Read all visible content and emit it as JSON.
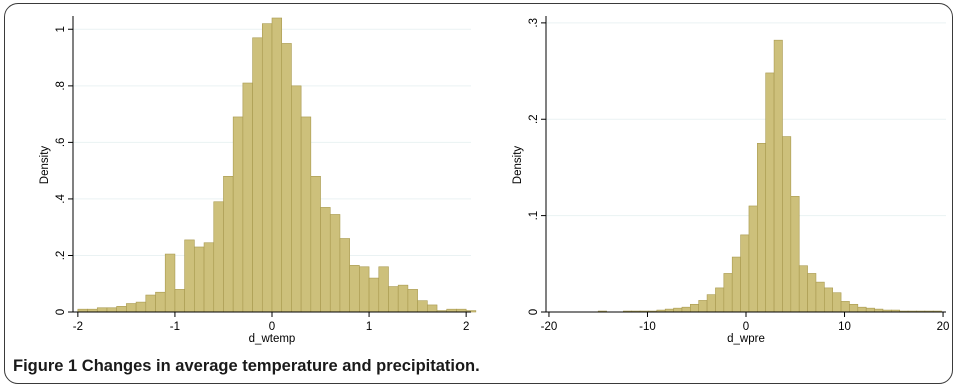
{
  "caption": {
    "label": "Figure 1",
    "text": "Changes in average temperature and precipitation."
  },
  "colors": {
    "bar_fill": "#cdc07b",
    "bar_stroke": "#a8994e",
    "plot_bg": "#ffffff",
    "grid": "#eaf2f3",
    "axis": "#000000"
  },
  "chart_data": [
    {
      "type": "bar",
      "subtype": "histogram",
      "xlabel": "d_wtemp",
      "ylabel": "Density",
      "xlim": [
        -2.05,
        2.05
      ],
      "ylim": [
        0,
        1.04
      ],
      "xticks": [
        -2,
        -1,
        0,
        1,
        2
      ],
      "xtick_labels": [
        "-2",
        "-1",
        "0",
        "1",
        "2"
      ],
      "yticks": [
        0,
        0.2,
        0.4,
        0.6,
        0.8,
        1
      ],
      "ytick_labels": [
        "0",
        ".2",
        ".4",
        ".6",
        ".8",
        "1"
      ],
      "grid": true,
      "bin_start": -2.0,
      "bin_width": 0.1,
      "values": [
        0.01,
        0.01,
        0.015,
        0.015,
        0.02,
        0.03,
        0.035,
        0.06,
        0.07,
        0.205,
        0.08,
        0.255,
        0.23,
        0.245,
        0.39,
        0.48,
        0.69,
        0.81,
        0.97,
        1.02,
        1.04,
        0.95,
        0.8,
        0.69,
        0.48,
        0.37,
        0.345,
        0.26,
        0.165,
        0.16,
        0.12,
        0.16,
        0.09,
        0.095,
        0.08,
        0.04,
        0.025,
        0.005,
        0.01,
        0.01,
        0.005
      ]
    },
    {
      "type": "bar",
      "subtype": "histogram",
      "xlabel": "d_wpre",
      "ylabel": "Density",
      "xlim": [
        -20.3,
        20.3
      ],
      "ylim": [
        0,
        0.305
      ],
      "xticks": [
        -20,
        -10,
        0,
        10,
        20
      ],
      "xtick_labels": [
        "-20",
        "-10",
        "0",
        "10",
        "20"
      ],
      "yticks": [
        0,
        0.1,
        0.2,
        0.3
      ],
      "ytick_labels": [
        "0",
        ".1",
        ".2",
        ".3"
      ],
      "grid": true,
      "bin_start": -15.0,
      "bin_width": 0.85,
      "values": [
        0.001,
        0,
        0,
        0.001,
        0.001,
        0.001,
        0.001,
        0.002,
        0.003,
        0.004,
        0.005,
        0.008,
        0.012,
        0.018,
        0.025,
        0.04,
        0.057,
        0.08,
        0.11,
        0.175,
        0.248,
        0.282,
        0.182,
        0.12,
        0.048,
        0.04,
        0.031,
        0.025,
        0.02,
        0.011,
        0.008,
        0.005,
        0.004,
        0.003,
        0.002,
        0.002,
        0.001,
        0.001,
        0.001,
        0.001,
        0.001
      ]
    }
  ]
}
